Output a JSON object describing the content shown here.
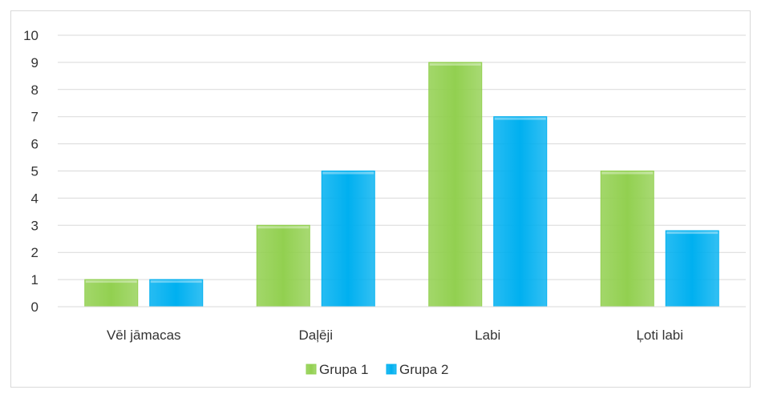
{
  "chart_data": {
    "type": "bar",
    "categories": [
      "Vēl jāmacas",
      "Daļēji",
      "Labi",
      "Ļoti labi"
    ],
    "series": [
      {
        "name": "Grupa 1",
        "values": [
          1,
          3,
          9,
          5
        ],
        "color": "#92d050"
      },
      {
        "name": "Grupa 2",
        "values": [
          1,
          5,
          7,
          2.8
        ],
        "color": "#00b0f0"
      }
    ],
    "title": "",
    "xlabel": "",
    "ylabel": "",
    "ylim": [
      0,
      10
    ],
    "yticks": [
      "0",
      "1",
      "2",
      "3",
      "4",
      "5",
      "6",
      "7",
      "8",
      "9",
      "10"
    ],
    "grid": true,
    "legend_position": "bottom"
  }
}
